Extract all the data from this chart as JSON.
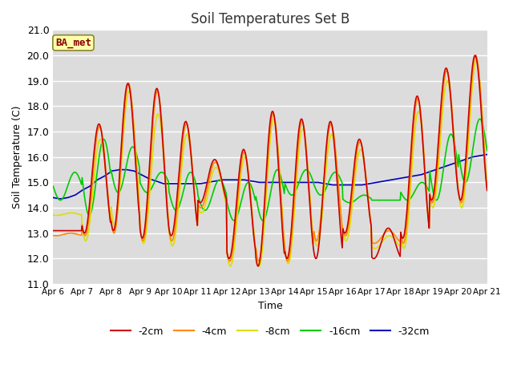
{
  "title": "Soil Temperatures Set B",
  "xlabel": "Time",
  "ylabel": "Soil Temperature (C)",
  "ylim": [
    11.0,
    21.0
  ],
  "yticks": [
    11.0,
    12.0,
    13.0,
    14.0,
    15.0,
    16.0,
    17.0,
    18.0,
    19.0,
    20.0,
    21.0
  ],
  "background_color": "#e8e8e8",
  "plot_bg": "#e0e0e0",
  "series": {
    "-2cm": {
      "color": "#cc0000",
      "lw": 1.2
    },
    "-4cm": {
      "color": "#ff8800",
      "lw": 1.2
    },
    "-8cm": {
      "color": "#dddd00",
      "lw": 1.2
    },
    "-16cm": {
      "color": "#00cc00",
      "lw": 1.2
    },
    "-32cm": {
      "color": "#0000bb",
      "lw": 1.2
    }
  },
  "annotation": {
    "text": "BA_met",
    "fontsize": 9,
    "color": "#880000",
    "bg": "#ffffaa",
    "border_color": "#888833"
  },
  "xtick_labels": [
    "Apr 6",
    "Apr 7",
    "Apr 8",
    "Apr 9",
    "Apr 10",
    "Apr 11",
    "Apr 12",
    "Apr 13",
    "Apr 14",
    "Apr 15",
    "Apr 16",
    "Apr 17",
    "Apr 18",
    "Apr 19",
    "Apr 20",
    "Apr 21"
  ],
  "n_days": 15,
  "hours_per_day": 24,
  "points_per_hour": 2,
  "peaks_2cm": [
    13.1,
    17.3,
    18.9,
    18.7,
    17.4,
    15.9,
    16.3,
    17.8,
    17.5,
    17.4,
    16.7,
    13.2,
    18.4,
    19.5,
    20.0
  ],
  "troughs_2cm": [
    13.1,
    13.0,
    13.1,
    12.8,
    12.9,
    14.2,
    12.0,
    11.7,
    12.0,
    12.0,
    13.0,
    12.0,
    12.8,
    14.3,
    14.3
  ],
  "peaks_4cm": [
    13.0,
    17.2,
    18.9,
    18.6,
    17.3,
    15.8,
    16.2,
    17.7,
    17.4,
    17.3,
    16.6,
    13.1,
    18.3,
    19.4,
    20.0
  ],
  "troughs_4cm": [
    12.9,
    12.9,
    13.0,
    12.7,
    12.7,
    14.0,
    11.9,
    11.9,
    11.9,
    12.7,
    12.9,
    12.6,
    12.6,
    14.2,
    14.2
  ],
  "peaks_8cm": [
    13.8,
    16.7,
    18.6,
    17.7,
    16.9,
    15.6,
    16.0,
    17.5,
    17.1,
    16.9,
    16.3,
    12.9,
    17.8,
    19.0,
    19.8
  ],
  "troughs_8cm": [
    13.7,
    12.7,
    13.3,
    12.6,
    12.5,
    13.8,
    11.7,
    11.7,
    11.8,
    12.5,
    12.7,
    12.4,
    12.4,
    14.0,
    14.0
  ],
  "peaks_16cm": [
    15.4,
    16.7,
    16.4,
    15.4,
    15.4,
    15.1,
    15.0,
    15.5,
    15.5,
    15.4,
    14.5,
    14.3,
    15.0,
    16.9,
    17.5
  ],
  "troughs_16cm": [
    14.3,
    13.7,
    14.6,
    14.6,
    13.9,
    13.9,
    13.5,
    13.5,
    14.5,
    14.5,
    14.2,
    14.3,
    14.3,
    14.3,
    15.0
  ],
  "s32cm_vals": [
    14.4,
    14.35,
    14.4,
    14.5,
    14.7,
    14.85,
    15.1,
    15.25,
    15.45,
    15.5,
    15.5,
    15.45,
    15.3,
    15.15,
    15.05,
    14.95,
    14.95,
    14.95,
    14.95,
    14.95,
    14.95,
    15.0,
    15.05,
    15.1,
    15.1,
    15.1,
    15.1,
    15.05,
    15.0,
    15.0,
    15.0,
    15.0,
    15.0,
    15.0,
    15.0,
    15.0,
    15.0,
    14.95,
    14.9,
    14.9,
    14.9,
    14.9,
    14.9,
    14.95,
    15.0,
    15.05,
    15.1,
    15.15,
    15.2,
    15.25,
    15.3,
    15.4,
    15.5,
    15.6,
    15.7,
    15.8,
    15.9,
    16.0,
    16.05,
    16.1
  ]
}
